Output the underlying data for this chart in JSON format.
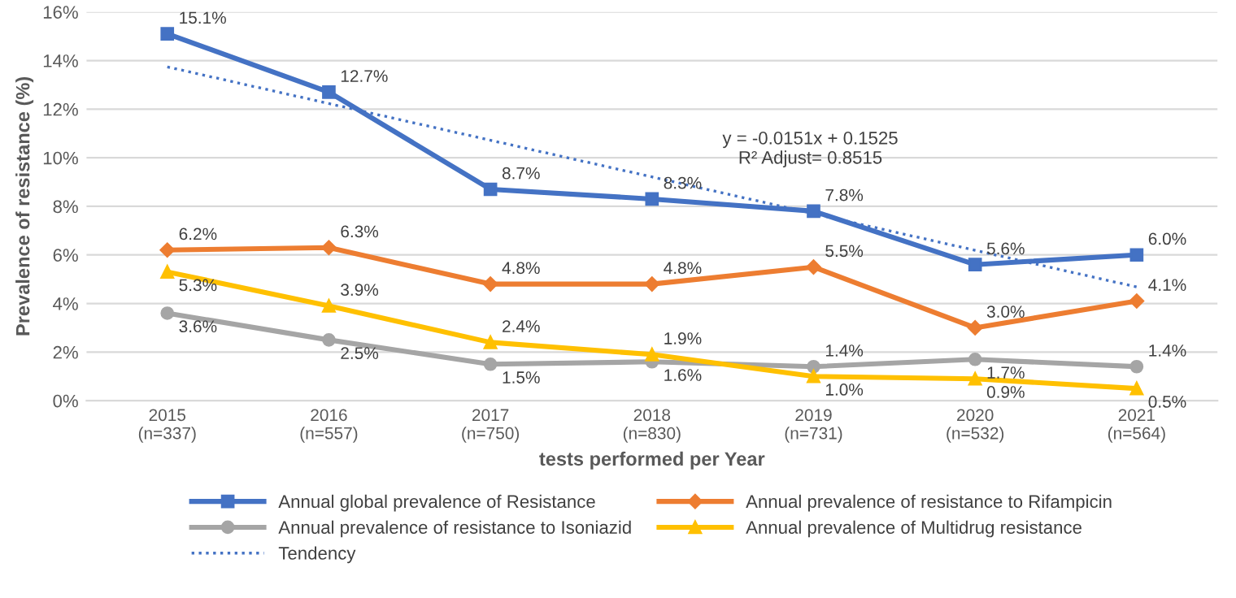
{
  "chart_data": {
    "type": "line",
    "xlabel": "tests performed per Year",
    "ylabel": "Prevalence of resistance (%)",
    "categories": [
      "2015\n(n=337)",
      "2016\n(n=557)",
      "2017\n(n=750)",
      "2018\n(n=830)",
      "2019\n(n=731)",
      "2020\n(n=532)",
      "2021\n(n=564)"
    ],
    "ylim": [
      0,
      16
    ],
    "yticks": [
      {
        "value": 0,
        "label": "0%"
      },
      {
        "value": 2,
        "label": "2%"
      },
      {
        "value": 4,
        "label": "4%"
      },
      {
        "value": 6,
        "label": "6%"
      },
      {
        "value": 8,
        "label": "8%"
      },
      {
        "value": 10,
        "label": "10%"
      },
      {
        "value": 12,
        "label": "12%"
      },
      {
        "value": 14,
        "label": "14%"
      },
      {
        "value": 16,
        "label": "16%"
      }
    ],
    "grid": "y",
    "legend": "bottom",
    "series": [
      {
        "name": "Annual global prevalence of Resistance",
        "color": "#4472c4",
        "marker": "square",
        "line_style": "solid",
        "values": [
          15.1,
          12.7,
          8.7,
          8.3,
          7.8,
          5.6,
          6.0
        ],
        "value_labels": [
          "15.1%",
          "12.7%",
          "8.7%",
          "8.3%",
          "7.8%",
          "5.6%",
          "6.0%"
        ]
      },
      {
        "name": "Annual prevalence of resistance to Rifampicin",
        "color": "#ed7d31",
        "marker": "diamond",
        "line_style": "solid",
        "values": [
          6.2,
          6.3,
          4.8,
          4.8,
          5.5,
          3.0,
          4.1
        ],
        "value_labels": [
          "6.2%",
          "6.3%",
          "4.8%",
          "4.8%",
          "5.5%",
          "3.0%",
          "4.1%"
        ]
      },
      {
        "name": "Annual prevalence of resistance to Isoniazid",
        "color": "#a5a5a5",
        "marker": "circle",
        "line_style": "solid",
        "values": [
          3.6,
          2.5,
          1.5,
          1.6,
          1.4,
          1.7,
          1.4
        ],
        "value_labels": [
          "3.6%",
          "2.5%",
          "1.5%",
          "1.6%",
          "1.4%",
          "1.7%",
          "1.4%"
        ]
      },
      {
        "name": "Annual prevalence of Multidrug resistance",
        "color": "#ffc000",
        "marker": "triangle",
        "line_style": "solid",
        "values": [
          5.3,
          3.9,
          2.4,
          1.9,
          1.0,
          0.9,
          0.5
        ],
        "value_labels": [
          "5.3%",
          "3.9%",
          "2.4%",
          "1.9%",
          "1.0%",
          "0.9%",
          "0.5%"
        ]
      },
      {
        "name": "Tendency",
        "color": "#4472c4",
        "marker": "none",
        "line_style": "dotted",
        "values": [
          13.74,
          12.23,
          10.72,
          9.21,
          7.7,
          6.19,
          4.68
        ]
      }
    ],
    "annotations": [
      "y = -0.0151x + 0.1525\nR² Adjust= 0.8515"
    ]
  }
}
